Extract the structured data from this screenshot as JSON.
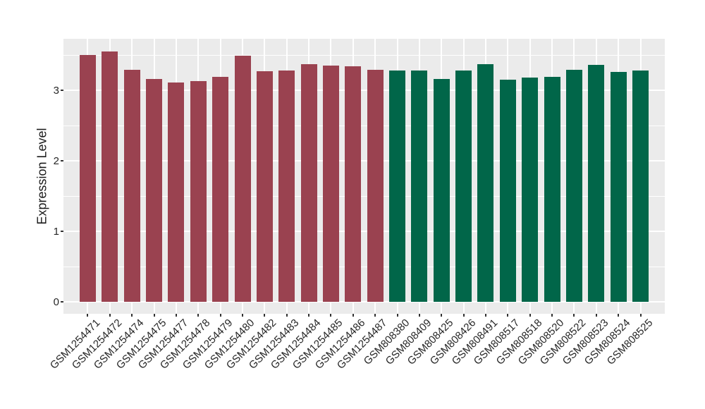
{
  "chart_data": {
    "type": "bar",
    "title": "",
    "xlabel": "",
    "ylabel": "Expression Level",
    "categories": [
      "GSM1254471",
      "GSM1254472",
      "GSM1254474",
      "GSM1254475",
      "GSM1254477",
      "GSM1254478",
      "GSM1254479",
      "GSM1254480",
      "GSM1254482",
      "GSM1254483",
      "GSM1254484",
      "GSM1254485",
      "GSM1254486",
      "GSM1254487",
      "GSM808380",
      "GSM808409",
      "GSM808425",
      "GSM808426",
      "GSM808491",
      "GSM808517",
      "GSM808518",
      "GSM808520",
      "GSM808522",
      "GSM808523",
      "GSM808524",
      "GSM808525"
    ],
    "values": [
      3.5,
      3.55,
      3.29,
      3.16,
      3.11,
      3.13,
      3.19,
      3.49,
      3.27,
      3.28,
      3.37,
      3.35,
      3.34,
      3.29,
      3.28,
      3.28,
      3.16,
      3.28,
      3.37,
      3.15,
      3.18,
      3.19,
      3.29,
      3.36,
      3.26,
      3.28
    ],
    "bar_colors": [
      "#9A4250",
      "#9A4250",
      "#9A4250",
      "#9A4250",
      "#9A4250",
      "#9A4250",
      "#9A4250",
      "#9A4250",
      "#9A4250",
      "#9A4250",
      "#9A4250",
      "#9A4250",
      "#9A4250",
      "#9A4250",
      "#016649",
      "#016649",
      "#016649",
      "#016649",
      "#016649",
      "#016649",
      "#016649",
      "#016649",
      "#016649",
      "#016649",
      "#016649",
      "#016649"
    ],
    "yticks": [
      0,
      1,
      2,
      3
    ],
    "ytick_labels": [
      "0",
      "1",
      "2",
      "3"
    ],
    "minor_gridlines": [
      0.5,
      1.5,
      2.5,
      3.5
    ],
    "ylim": [
      -0.17,
      3.73
    ],
    "grid": "on",
    "legend": "none",
    "panel_background": "#EBEBEB",
    "gridline_color": "#FFFFFF",
    "tick_color": "#333333",
    "text_color": "#262626"
  }
}
